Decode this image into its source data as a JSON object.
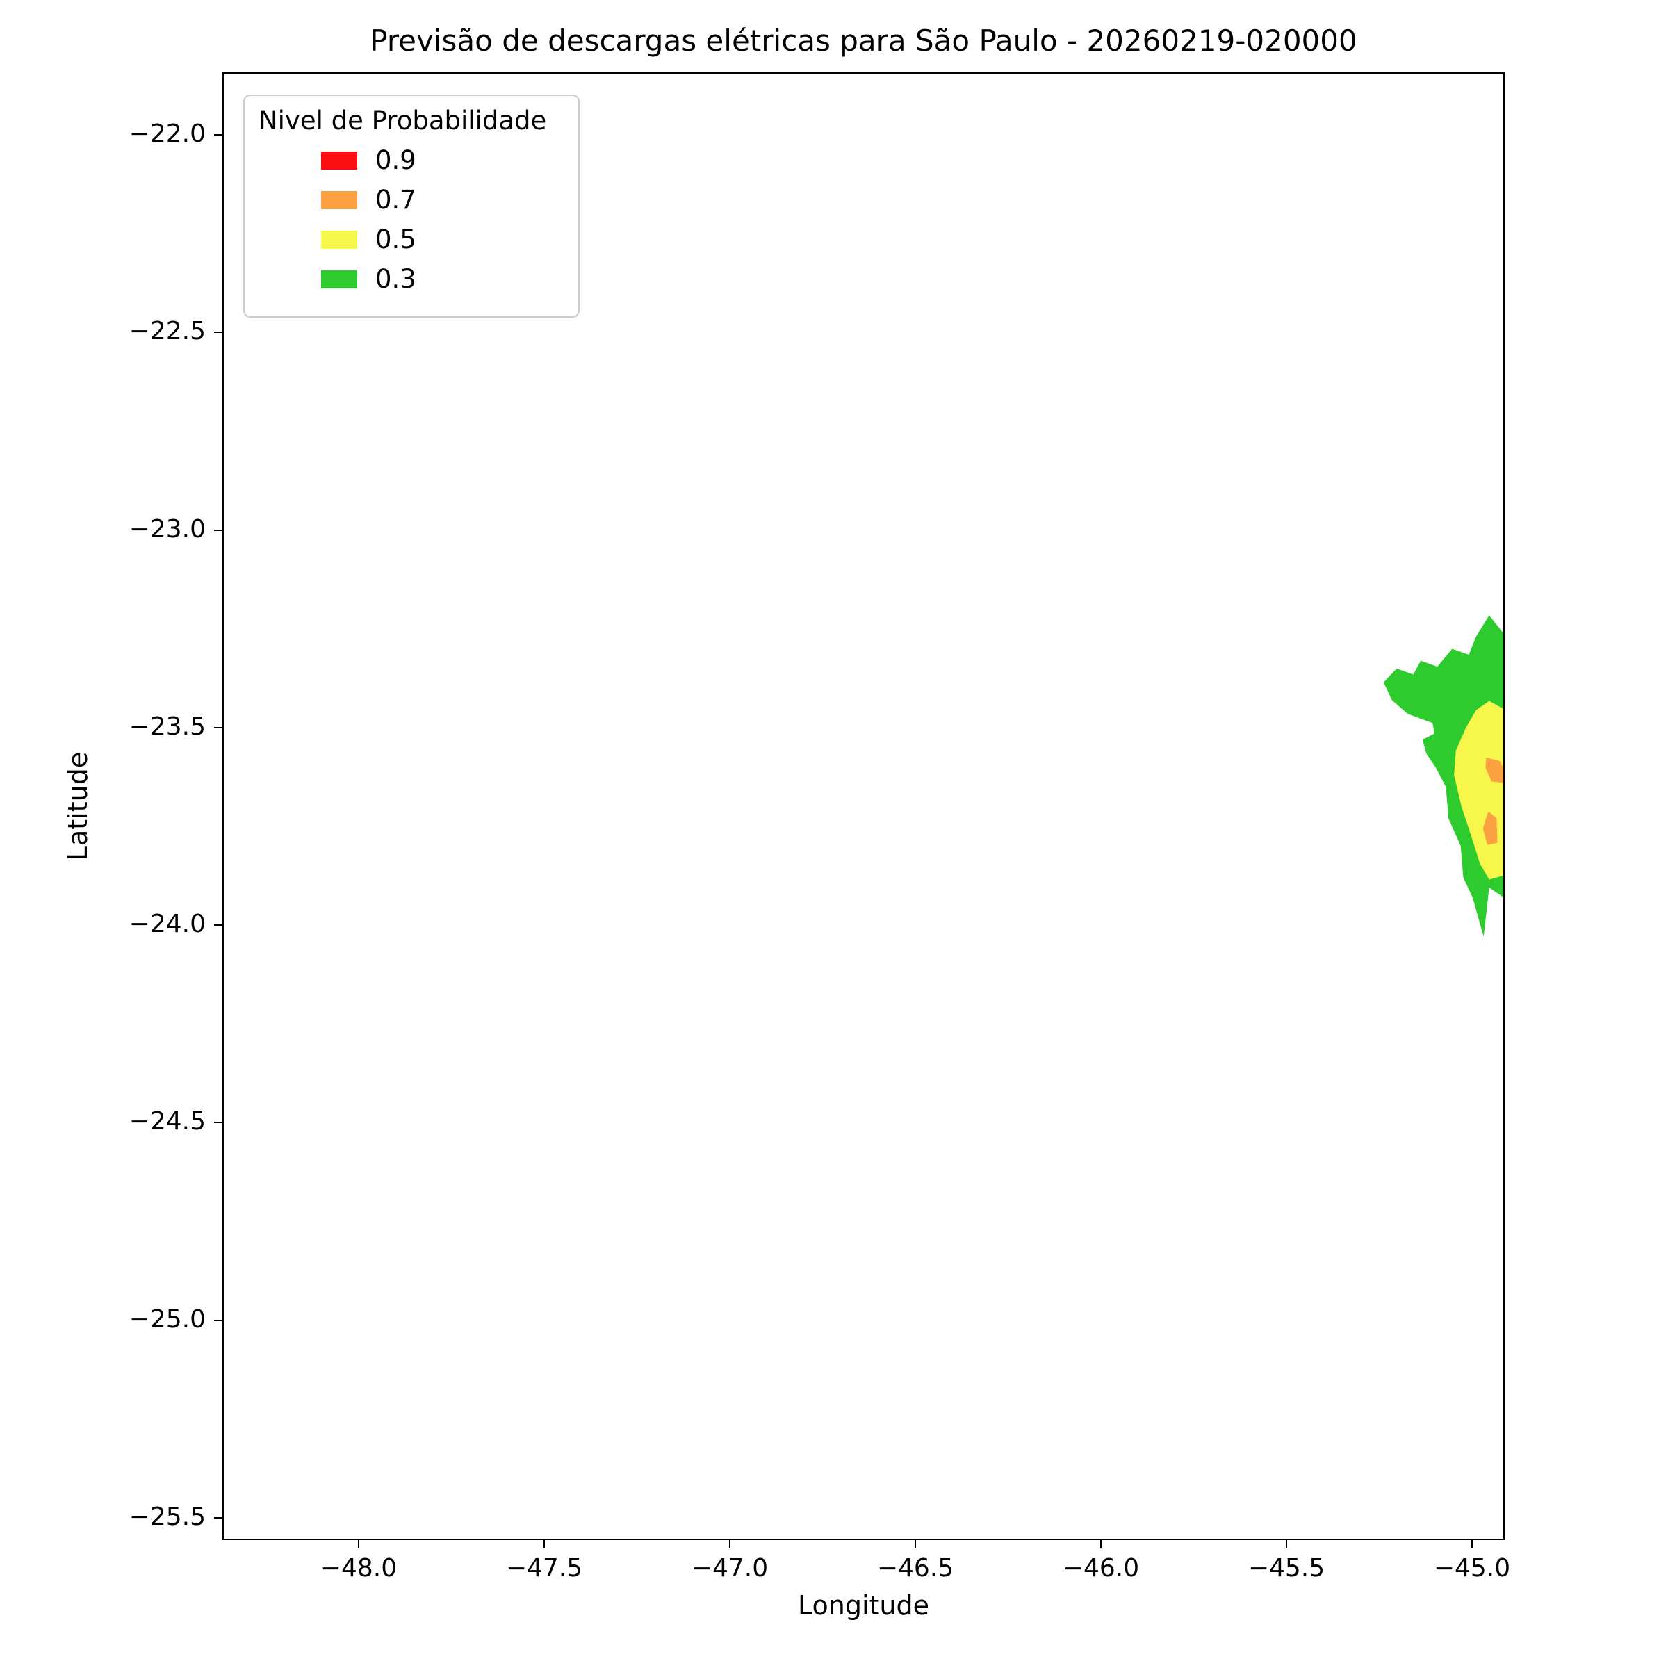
{
  "chart_data": {
    "type": "contour-map",
    "title": "Previsão de descargas elétricas para São Paulo - 20260219-020000",
    "xlabel": "Longitude",
    "ylabel": "Latitude",
    "xlim": [
      -48.367,
      -44.912
    ],
    "ylim": [
      -25.556,
      -21.842
    ],
    "grid": false,
    "legend_position": "upper-left",
    "xticks": [
      {
        "value": -48.0,
        "label": "−48.0"
      },
      {
        "value": -47.5,
        "label": "−47.5"
      },
      {
        "value": -47.0,
        "label": "−47.0"
      },
      {
        "value": -46.5,
        "label": "−46.5"
      },
      {
        "value": -46.0,
        "label": "−46.0"
      },
      {
        "value": -45.5,
        "label": "−45.5"
      },
      {
        "value": -45.0,
        "label": "−45.0"
      }
    ],
    "yticks": [
      {
        "value": -22.0,
        "label": "−22.0"
      },
      {
        "value": -22.5,
        "label": "−22.5"
      },
      {
        "value": -23.0,
        "label": "−23.0"
      },
      {
        "value": -23.5,
        "label": "−23.5"
      },
      {
        "value": -24.0,
        "label": "−24.0"
      },
      {
        "value": -24.5,
        "label": "−24.5"
      },
      {
        "value": -25.0,
        "label": "−25.0"
      },
      {
        "value": -25.5,
        "label": "−25.5"
      }
    ],
    "legend": {
      "title": "Nivel de Probabilidade",
      "entries": [
        {
          "label": "0.9",
          "color": "#fb0f0f"
        },
        {
          "label": "0.7",
          "color": "#fba142"
        },
        {
          "label": "0.5",
          "color": "#f7f74b"
        },
        {
          "label": "0.3",
          "color": "#2dcb2d"
        }
      ]
    },
    "regions": [
      {
        "level": "0.3",
        "color": "#2dcb2d",
        "polygons": [
          [
            [
              -44.95,
              -23.215
            ],
            [
              -44.912,
              -23.26
            ],
            [
              -44.912,
              -23.93
            ],
            [
              -44.95,
              -23.905
            ],
            [
              -44.965,
              -24.03
            ],
            [
              -44.995,
              -23.93
            ],
            [
              -45.02,
              -23.88
            ],
            [
              -45.027,
              -23.8
            ],
            [
              -45.06,
              -23.73
            ],
            [
              -45.067,
              -23.65
            ],
            [
              -45.095,
              -23.6
            ],
            [
              -45.12,
              -23.565
            ],
            [
              -45.13,
              -23.53
            ],
            [
              -45.098,
              -23.515
            ],
            [
              -45.103,
              -23.488
            ],
            [
              -45.17,
              -23.465
            ],
            [
              -45.213,
              -23.43
            ],
            [
              -45.235,
              -23.385
            ],
            [
              -45.2,
              -23.35
            ],
            [
              -45.155,
              -23.365
            ],
            [
              -45.135,
              -23.33
            ],
            [
              -45.09,
              -23.345
            ],
            [
              -45.05,
              -23.3
            ],
            [
              -45.005,
              -23.315
            ],
            [
              -44.985,
              -23.268
            ]
          ]
        ]
      },
      {
        "level": "0.5",
        "color": "#f7f74b",
        "polygons": [
          [
            [
              -44.95,
              -23.432
            ],
            [
              -44.912,
              -23.452
            ],
            [
              -44.912,
              -23.875
            ],
            [
              -44.95,
              -23.885
            ],
            [
              -44.975,
              -23.845
            ],
            [
              -45.0,
              -23.77
            ],
            [
              -45.025,
              -23.7
            ],
            [
              -45.045,
              -23.62
            ],
            [
              -45.04,
              -23.558
            ],
            [
              -45.013,
              -23.5
            ],
            [
              -44.985,
              -23.455
            ]
          ]
        ]
      },
      {
        "level": "0.7",
        "color": "#fba142",
        "polygons": [
          [
            [
              -44.958,
              -23.575
            ],
            [
              -44.92,
              -23.585
            ],
            [
              -44.912,
              -23.603
            ],
            [
              -44.912,
              -23.64
            ],
            [
              -44.944,
              -23.636
            ],
            [
              -44.96,
              -23.602
            ]
          ],
          [
            [
              -44.952,
              -23.712
            ],
            [
              -44.93,
              -23.73
            ],
            [
              -44.928,
              -23.792
            ],
            [
              -44.955,
              -23.797
            ],
            [
              -44.967,
              -23.755
            ]
          ]
        ]
      }
    ]
  }
}
